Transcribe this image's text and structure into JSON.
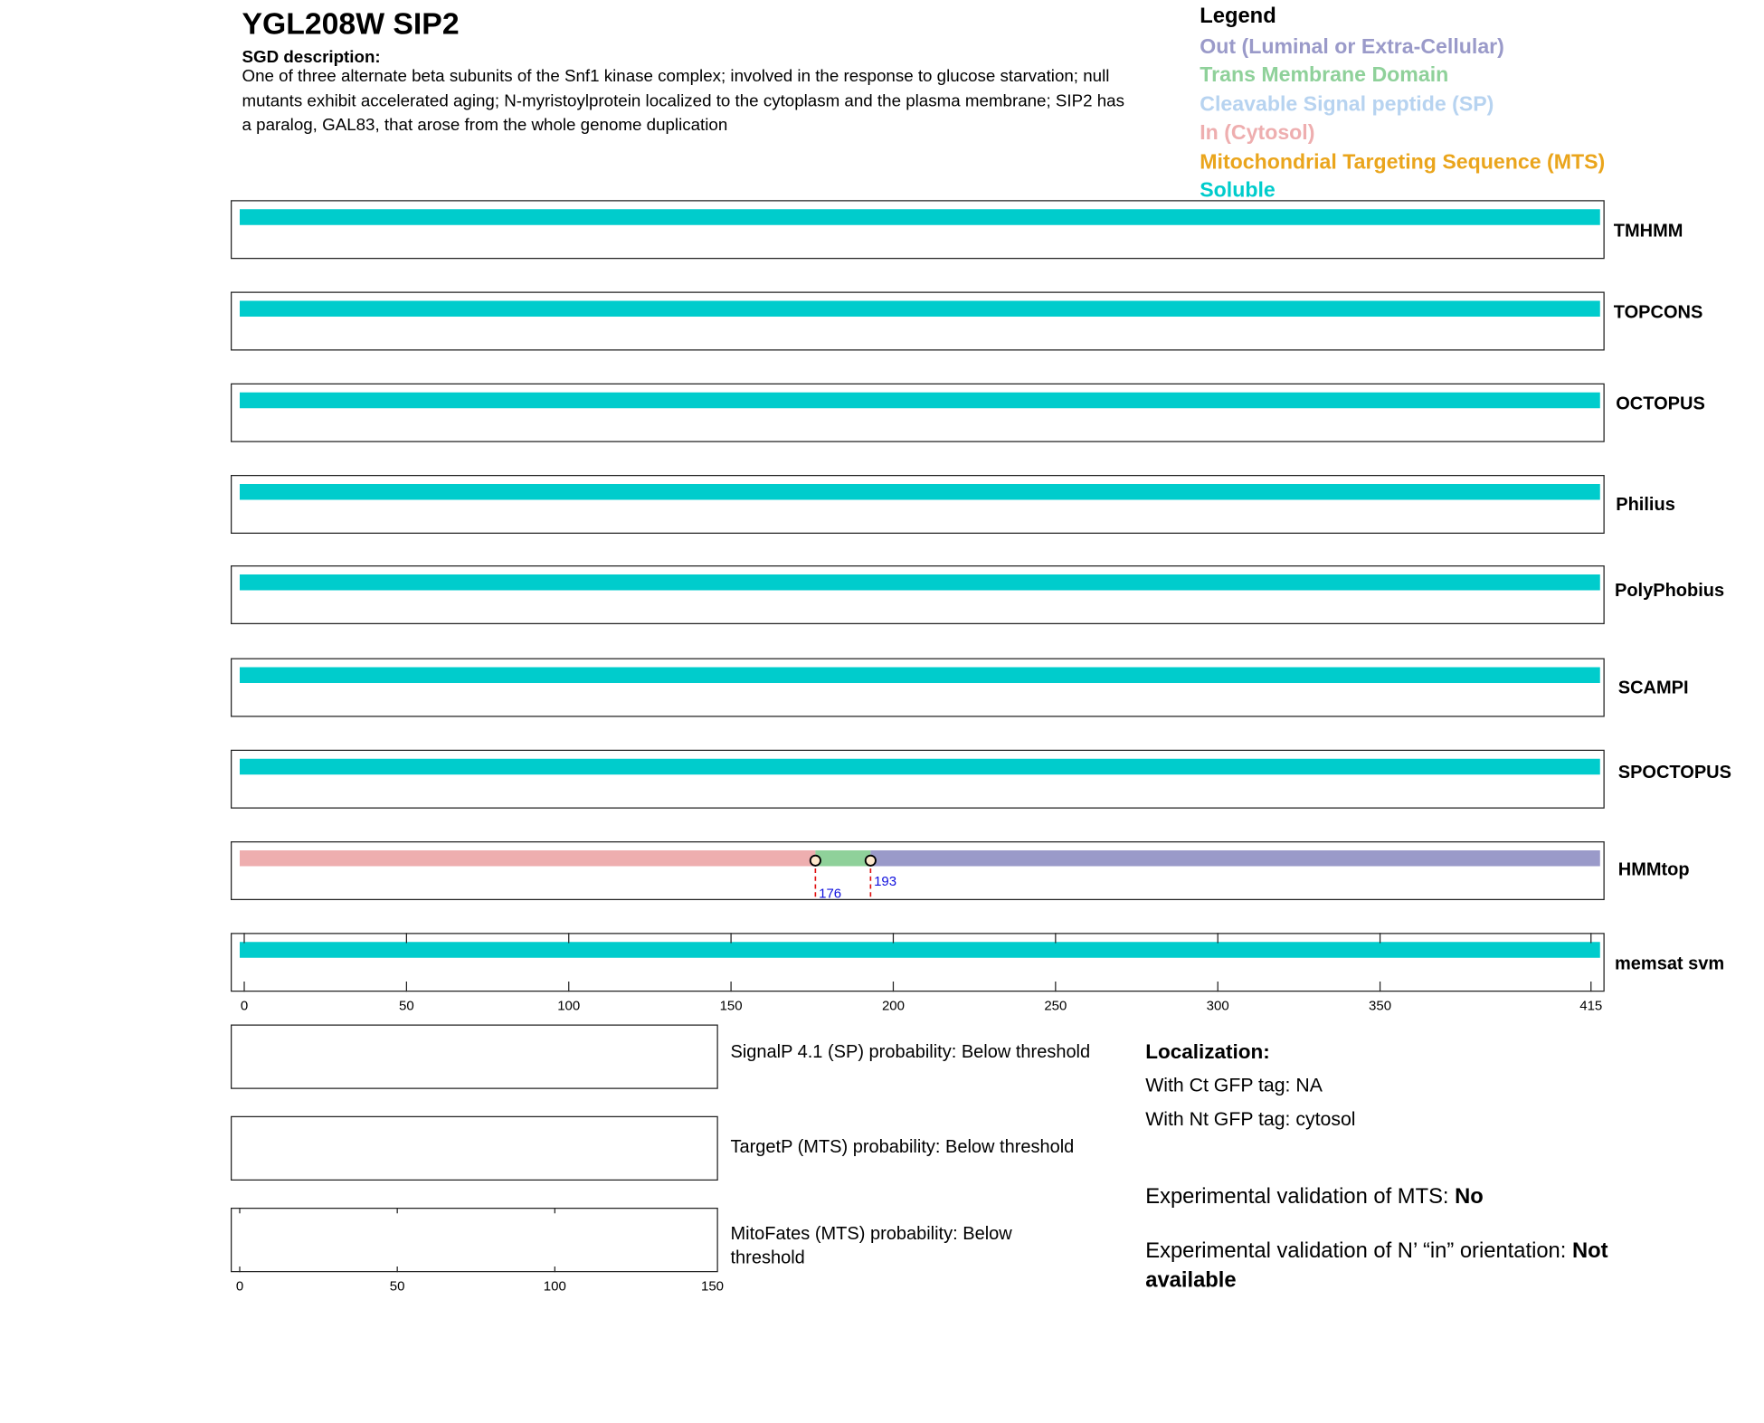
{
  "header": {
    "title": "YGL208W  SIP2",
    "sgd_heading": "SGD description:",
    "sgd_text": "One of three alternate beta subunits of the Snf1 kinase complex; involved in the response to glucose starvation; null mutants exhibit accelerated aging; N-myristoylprotein localized to the cytoplasm and the plasma membrane; SIP2 has a paralog, GAL83, that arose from the whole genome duplication"
  },
  "legend": {
    "title": "Legend",
    "items": [
      {
        "label": "Out (Luminal or Extra-Cellular)",
        "color": "#9a9ac9"
      },
      {
        "label": "Trans Membrane Domain",
        "color": "#8fd19a"
      },
      {
        "label": "Cleavable Signal peptide (SP)",
        "color": "#b7d3f0"
      },
      {
        "label": "In (Cytosol)",
        "color": "#eeaeaf"
      },
      {
        "label": "Mitochondrial Targeting Sequence (MTS)",
        "color": "#eaa51c"
      },
      {
        "label": "Soluble",
        "color": "#00cccc"
      }
    ]
  },
  "colors": {
    "out": "#9a9ac9",
    "tm": "#8fd19a",
    "in": "#eeaeaf",
    "soluble": "#00cccc",
    "marker_line": "#e01010",
    "marker_label": "#1010dd"
  },
  "sequence_length": 415,
  "tracks": [
    {
      "name": "TMHMM",
      "segments": [
        {
          "type": "soluble",
          "start": 1,
          "end": 415
        }
      ]
    },
    {
      "name": "TOPCONS",
      "segments": [
        {
          "type": "soluble",
          "start": 1,
          "end": 415
        }
      ]
    },
    {
      "name": "OCTOPUS",
      "segments": [
        {
          "type": "soluble",
          "start": 1,
          "end": 415
        }
      ]
    },
    {
      "name": "Philius",
      "segments": [
        {
          "type": "soluble",
          "start": 1,
          "end": 415
        }
      ]
    },
    {
      "name": "PolyPhobius",
      "segments": [
        {
          "type": "soluble",
          "start": 1,
          "end": 415
        }
      ]
    },
    {
      "name": "SCAMPI",
      "segments": [
        {
          "type": "soluble",
          "start": 1,
          "end": 415
        }
      ]
    },
    {
      "name": "SPOCTOPUS",
      "segments": [
        {
          "type": "soluble",
          "start": 1,
          "end": 415
        }
      ]
    },
    {
      "name": "HMMtop",
      "segments": [
        {
          "type": "in",
          "start": 1,
          "end": 176
        },
        {
          "type": "tm",
          "start": 176,
          "end": 193
        },
        {
          "type": "out",
          "start": 193,
          "end": 415
        }
      ],
      "markers": [
        "176",
        "193"
      ]
    },
    {
      "name": "memsat svm",
      "segments": [
        {
          "type": "soluble",
          "start": 1,
          "end": 415
        }
      ]
    }
  ],
  "axis": {
    "ticks": [
      "0",
      "50",
      "100",
      "150",
      "200",
      "250",
      "300",
      "350",
      "415"
    ]
  },
  "predictors": [
    {
      "text": "SignalP 4.1 (SP) probability: Below threshold"
    },
    {
      "text": "TargetP (MTS) probability: Below threshold"
    },
    {
      "text_line1": "MitoFates (MTS) probability: Below",
      "text_line2": "threshold"
    }
  ],
  "small_axis": {
    "ticks": [
      "0",
      "50",
      "100",
      "150"
    ]
  },
  "localization": {
    "heading": "Localization:",
    "ct": "With Ct GFP tag: NA",
    "nt": "With Nt GFP tag: cytosol",
    "mts_label": "Experimental validation of MTS: ",
    "mts_value": "No",
    "orient_label": "Experimental validation of N’ “in” orientation: ",
    "orient_value_1": "Not",
    "orient_value_2": "available"
  }
}
